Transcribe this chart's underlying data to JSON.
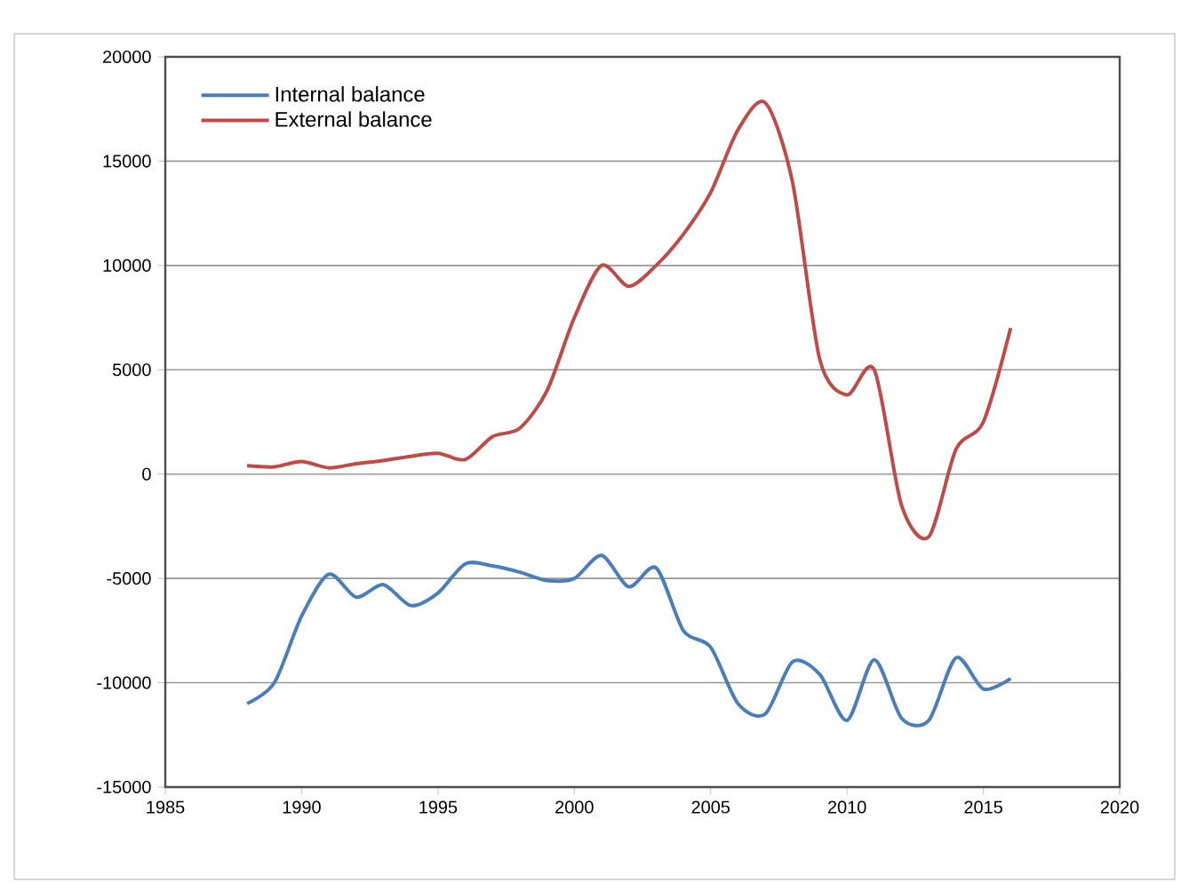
{
  "chart_data": {
    "type": "line",
    "x": [
      1988,
      1989,
      1990,
      1991,
      1992,
      1993,
      1994,
      1995,
      1996,
      1997,
      1998,
      1999,
      2000,
      2001,
      2002,
      2003,
      2004,
      2005,
      2006,
      2007,
      2008,
      2009,
      2010,
      2011,
      2012,
      2013,
      2014,
      2015,
      2016
    ],
    "series": [
      {
        "name": "Internal balance",
        "color": "#4a7ebb",
        "values": [
          -11000,
          -10000,
          -6800,
          -4800,
          -5900,
          -5300,
          -6300,
          -5700,
          -4300,
          -4400,
          -4700,
          -5100,
          -5000,
          -3900,
          -5400,
          -4500,
          -7500,
          -8300,
          -11000,
          -11500,
          -9000,
          -9600,
          -11800,
          -8900,
          -11700,
          -11800,
          -8800,
          -10300,
          -9800
        ]
      },
      {
        "name": "External balance",
        "color": "#be4b48",
        "values": [
          400,
          350,
          600,
          300,
          500,
          650,
          850,
          1000,
          700,
          1800,
          2200,
          4000,
          7500,
          10000,
          9000,
          10000,
          11500,
          13500,
          16500,
          17800,
          14000,
          5500,
          3800,
          5000,
          -1500,
          -3000,
          1200,
          2500,
          7000
        ]
      }
    ],
    "xlim": [
      1985,
      2020
    ],
    "xticks": [
      1985,
      1990,
      1995,
      2000,
      2005,
      2010,
      2015,
      2020
    ],
    "ylim": [
      -15000,
      20000
    ],
    "yticks": [
      -15000,
      -10000,
      -5000,
      0,
      5000,
      10000,
      15000,
      20000
    ],
    "grid": "y",
    "legend": "top left",
    "marker": "none",
    "line_style": "solid"
  }
}
